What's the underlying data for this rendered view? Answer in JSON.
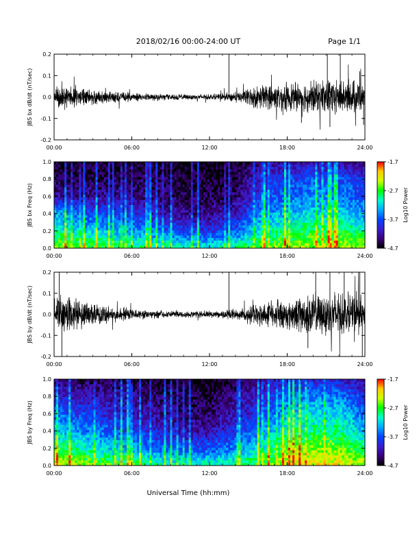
{
  "header": {
    "date_range": "2018/02/16  00:00-24:00 UT",
    "page": "Page 1/1"
  },
  "x_axis": {
    "label": "Universal Time (hh:mm)",
    "ticks": [
      "00:00",
      "06:00",
      "12:00",
      "18:00",
      "24:00"
    ],
    "range_hours": [
      0,
      24
    ]
  },
  "colorbar": {
    "label": "Log10 Power",
    "ticks": [
      "-1.7",
      "-2.7",
      "-3.7",
      "-4.7"
    ],
    "range": [
      -4.7,
      -1.7
    ],
    "colormap": [
      "#000000",
      "#3a007a",
      "#3a1fd0",
      "#0044ff",
      "#00aaff",
      "#00ffcc",
      "#00ff00",
      "#ccff00",
      "#ffcc00",
      "#ff0000"
    ]
  },
  "chart_data": [
    {
      "type": "line",
      "ylabel": "JBS bx dB/dt (nT/sec)",
      "ylim": [
        -0.2,
        0.2
      ],
      "yticks": [
        "0.2",
        "0.1",
        "0.0",
        "-0.1",
        "-0.2"
      ],
      "series": [
        {
          "x_hours": [
            0,
            0.5,
            1,
            1.5,
            2,
            2.5,
            3,
            3.5,
            4,
            4.5,
            5,
            5.5,
            6,
            6.5,
            7,
            7.5,
            8,
            8.5,
            9,
            9.5,
            10,
            10.5,
            11,
            11.5,
            12,
            12.5,
            13,
            13.5,
            14,
            14.5,
            15,
            15.5,
            16,
            16.5,
            17,
            17.5,
            18,
            18.5,
            19,
            19.5,
            20,
            20.5,
            21,
            21.5,
            22,
            22.5,
            23,
            23.5,
            24
          ],
          "envelope": [
            0.03,
            0.05,
            0.04,
            0.035,
            0.03,
            0.03,
            0.025,
            0.025,
            0.022,
            0.02,
            0.02,
            0.018,
            0.015,
            0.015,
            0.014,
            0.013,
            0.013,
            0.012,
            0.01,
            0.01,
            0.01,
            0.01,
            0.01,
            0.01,
            0.01,
            0.012,
            0.015,
            0.018,
            0.02,
            0.025,
            0.03,
            0.04,
            0.045,
            0.05,
            0.045,
            0.05,
            0.05,
            0.05,
            0.055,
            0.055,
            0.06,
            0.06,
            0.065,
            0.07,
            0.065,
            0.06,
            0.06,
            0.06,
            0.04
          ],
          "spikes": [
            [
              13.5,
              0.2
            ],
            [
              21.1,
              0.2
            ],
            [
              21.3,
              -0.14
            ],
            [
              22.1,
              0.2
            ],
            [
              23.6,
              0.12
            ],
            [
              19.1,
              -0.12
            ],
            [
              23.9,
              -0.13
            ]
          ]
        }
      ]
    },
    {
      "type": "heatmap",
      "ylabel": "JBS bx Freq (Hz)",
      "ylim": [
        0.0,
        1.0
      ],
      "yticks": [
        "1.0",
        "0.8",
        "0.6",
        "0.4",
        "0.2",
        "0.0"
      ],
      "zrange": [
        -4.7,
        -1.7
      ],
      "x_hours": [
        0,
        2,
        4,
        6,
        8,
        10,
        12,
        14,
        16,
        18,
        20,
        22,
        24
      ],
      "freq_hz": [
        0.0,
        0.2,
        0.4,
        0.6,
        0.8,
        1.0
      ],
      "log10_power": [
        [
          -2.4,
          -2.9,
          -3.3,
          -4.2,
          -4.5,
          -4.6
        ],
        [
          -2.6,
          -3.2,
          -3.7,
          -4.3,
          -4.5,
          -4.6
        ],
        [
          -2.7,
          -3.3,
          -3.8,
          -4.3,
          -4.5,
          -4.6
        ],
        [
          -2.8,
          -3.4,
          -3.9,
          -4.3,
          -4.5,
          -4.6
        ],
        [
          -2.9,
          -3.6,
          -4.1,
          -4.4,
          -4.5,
          -4.6
        ],
        [
          -3.0,
          -3.8,
          -4.3,
          -4.5,
          -4.6,
          -4.7
        ],
        [
          -3.0,
          -3.9,
          -4.3,
          -4.5,
          -4.6,
          -4.7
        ],
        [
          -2.9,
          -3.7,
          -4.1,
          -4.4,
          -4.5,
          -4.6
        ],
        [
          -2.6,
          -3.1,
          -3.5,
          -3.8,
          -4.0,
          -4.3
        ],
        [
          -2.5,
          -2.9,
          -3.3,
          -3.6,
          -3.8,
          -4.2
        ],
        [
          -2.4,
          -2.8,
          -3.2,
          -3.5,
          -3.7,
          -4.2
        ],
        [
          -2.4,
          -2.8,
          -3.2,
          -3.5,
          -3.7,
          -4.2
        ],
        [
          -2.5,
          -3.0,
          -3.4,
          -3.7,
          -3.9,
          -4.3
        ]
      ]
    },
    {
      "type": "line",
      "ylabel": "JBS by dB/dt (nT/sec)",
      "ylim": [
        -0.2,
        0.2
      ],
      "yticks": [
        "0.2",
        "0.1",
        "0.0",
        "-0.1",
        "-0.2"
      ],
      "series": [
        {
          "x_hours": [
            0,
            0.5,
            1,
            1.5,
            2,
            2.5,
            3,
            3.5,
            4,
            4.5,
            5,
            5.5,
            6,
            6.5,
            7,
            7.5,
            8,
            8.5,
            9,
            9.5,
            10,
            10.5,
            11,
            11.5,
            12,
            12.5,
            13,
            13.5,
            14,
            14.5,
            15,
            15.5,
            16,
            16.5,
            17,
            17.5,
            18,
            18.5,
            19,
            19.5,
            20,
            20.5,
            21,
            21.5,
            22,
            22.5,
            23,
            23.5,
            24
          ],
          "envelope": [
            0.05,
            0.08,
            0.07,
            0.06,
            0.05,
            0.045,
            0.04,
            0.04,
            0.035,
            0.03,
            0.025,
            0.025,
            0.02,
            0.02,
            0.018,
            0.015,
            0.015,
            0.014,
            0.012,
            0.012,
            0.012,
            0.012,
            0.012,
            0.012,
            0.012,
            0.014,
            0.015,
            0.018,
            0.02,
            0.025,
            0.035,
            0.04,
            0.045,
            0.05,
            0.05,
            0.055,
            0.055,
            0.06,
            0.065,
            0.07,
            0.075,
            0.075,
            0.08,
            0.08,
            0.08,
            0.075,
            0.08,
            0.09,
            0.05
          ],
          "spikes": [
            [
              0.4,
              0.2
            ],
            [
              0.6,
              -0.2
            ],
            [
              13.5,
              0.2
            ],
            [
              20.2,
              0.2
            ],
            [
              21.3,
              0.2
            ],
            [
              22.4,
              0.2
            ],
            [
              23.6,
              0.2
            ],
            [
              19.6,
              -0.16
            ],
            [
              23.8,
              -0.2
            ]
          ]
        }
      ]
    },
    {
      "type": "heatmap",
      "ylabel": "JBS by Freq (Hz)",
      "ylim": [
        0.0,
        1.0
      ],
      "yticks": [
        "1.0",
        "0.8",
        "0.6",
        "0.4",
        "0.2",
        "0.0"
      ],
      "zrange": [
        -4.7,
        -1.7
      ],
      "x_hours": [
        0,
        2,
        4,
        6,
        8,
        10,
        12,
        14,
        16,
        18,
        20,
        22,
        24
      ],
      "freq_hz": [
        0.0,
        0.2,
        0.4,
        0.6,
        0.8,
        1.0
      ],
      "log10_power": [
        [
          -2.2,
          -2.7,
          -3.2,
          -3.6,
          -4.0,
          -4.4
        ],
        [
          -2.4,
          -3.0,
          -3.5,
          -3.8,
          -4.1,
          -4.5
        ],
        [
          -2.6,
          -3.2,
          -3.6,
          -4.0,
          -4.2,
          -4.5
        ],
        [
          -2.7,
          -3.4,
          -3.8,
          -4.1,
          -4.3,
          -4.6
        ],
        [
          -2.9,
          -3.6,
          -4.0,
          -4.3,
          -4.4,
          -4.6
        ],
        [
          -3.0,
          -3.7,
          -4.2,
          -4.4,
          -4.5,
          -4.7
        ],
        [
          -3.0,
          -3.7,
          -4.2,
          -4.4,
          -4.5,
          -4.7
        ],
        [
          -2.9,
          -3.5,
          -3.9,
          -4.2,
          -4.3,
          -4.6
        ],
        [
          -2.6,
          -3.1,
          -3.5,
          -3.8,
          -4.0,
          -4.3
        ],
        [
          -2.3,
          -2.6,
          -3.0,
          -3.3,
          -3.6,
          -4.0
        ],
        [
          -2.2,
          -2.5,
          -2.9,
          -3.2,
          -3.5,
          -4.0
        ],
        [
          -2.2,
          -2.5,
          -2.9,
          -3.2,
          -3.5,
          -4.0
        ],
        [
          -2.4,
          -2.9,
          -3.3,
          -3.6,
          -3.9,
          -4.3
        ]
      ]
    }
  ]
}
